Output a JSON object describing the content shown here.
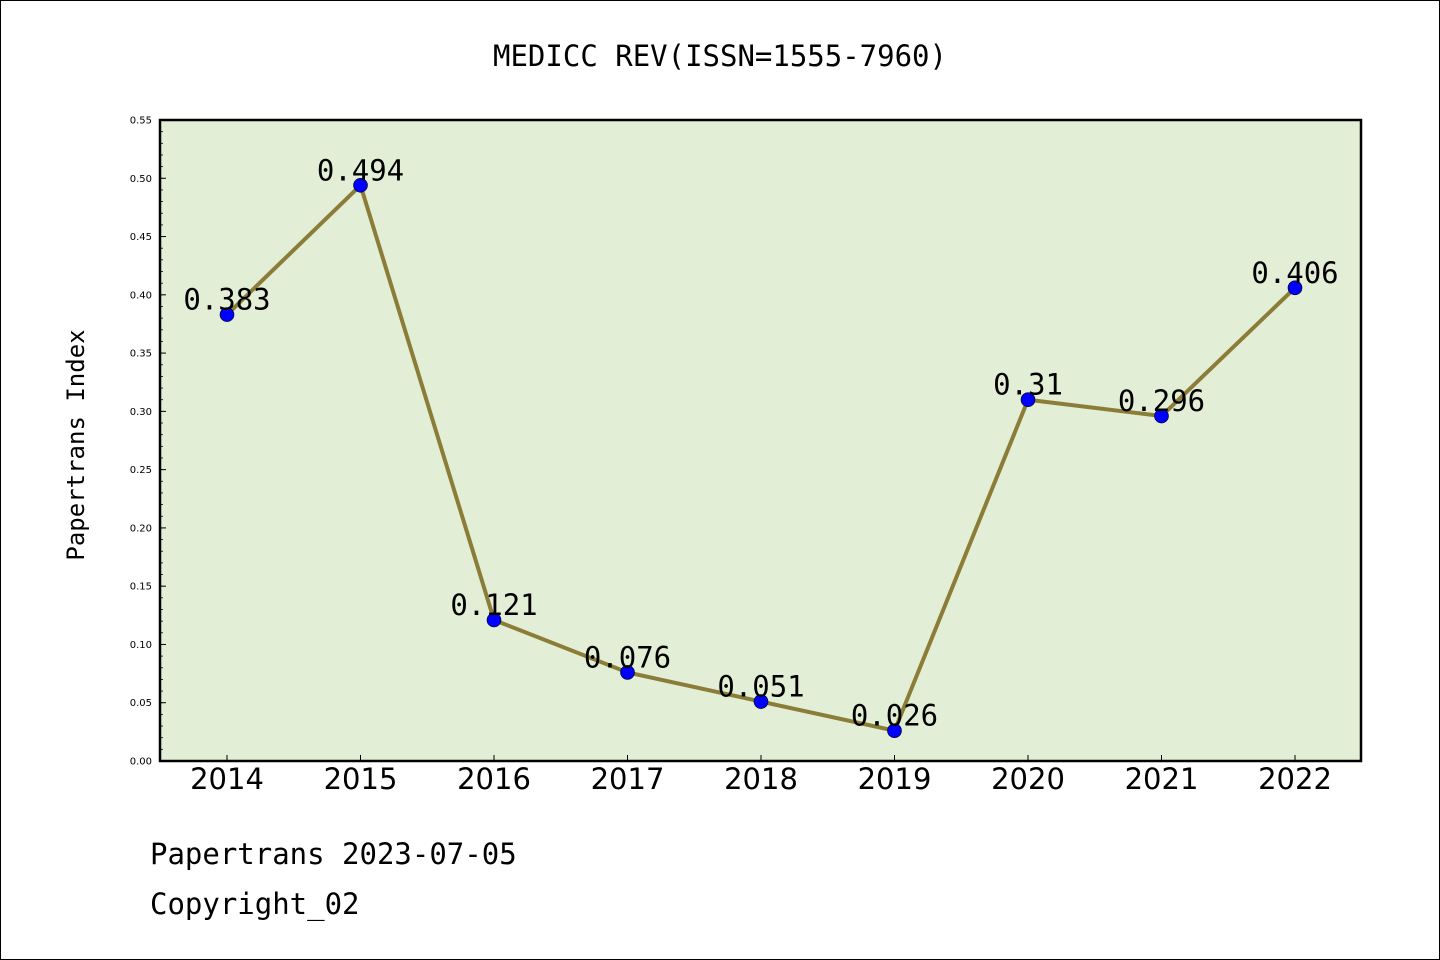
{
  "chart_data": {
    "type": "line",
    "title": "MEDICC REV(ISSN=1555-7960)",
    "xlabel": "",
    "ylabel": "Papertrans Index",
    "categories": [
      "2014",
      "2015",
      "2016",
      "2017",
      "2018",
      "2019",
      "2020",
      "2021",
      "2022"
    ],
    "series": [
      {
        "values": [
          0.383,
          0.494,
          0.121,
          0.076,
          0.051,
          0.026,
          0.31,
          0.296,
          0.406
        ]
      }
    ],
    "data_labels": [
      "0.383",
      "0.494",
      "0.121",
      "0.076",
      "0.051",
      "0.026",
      "0.31",
      "0.296",
      "0.406"
    ],
    "ylim": [
      0,
      0.55
    ],
    "y_ticks": [
      "0.00",
      "0.05",
      "0.10",
      "0.15",
      "0.20",
      "0.25",
      "0.30",
      "0.35",
      "0.40",
      "0.45",
      "0.50",
      "0.55"
    ],
    "grid": false,
    "colors": {
      "plot_background": "#e2efd6",
      "line": "#8b7d37",
      "marker": "#0000ff"
    }
  },
  "footer": {
    "line1": "Papertrans 2023-07-05",
    "line2": "Copyright_02"
  }
}
